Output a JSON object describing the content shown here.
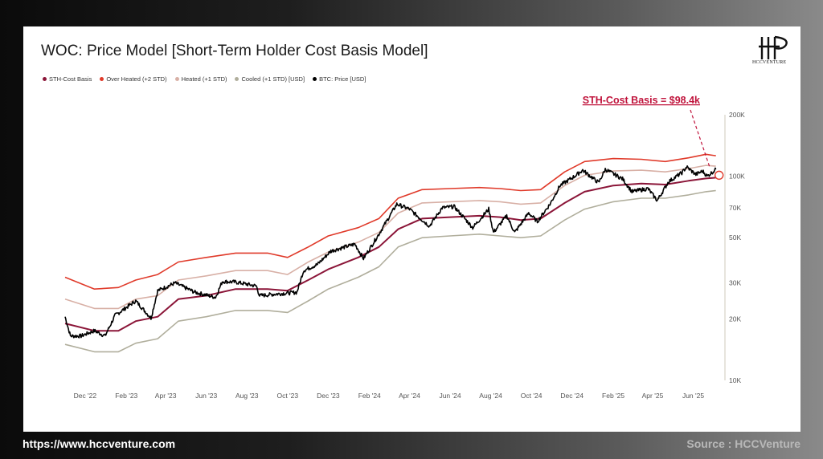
{
  "header": {
    "title": "WOC: Price Model [Short-Term Holder Cost Basis Model]"
  },
  "logo": {
    "text": "HCCVENTURE"
  },
  "footer": {
    "website": "https://www.hccventure.com",
    "source": "Source : HCCVenture"
  },
  "colors": {
    "sth": "#8b1538",
    "overheated": "#e03a2a",
    "heated": "#d8b0a6",
    "cooled": "#b0ae9c",
    "price": "#000000",
    "annotation": "#c0143c"
  },
  "chart_data": {
    "type": "line",
    "title": "WOC: Price Model [Short-Term Holder Cost Basis Model]",
    "annotation": "STH-Cost Basis = $98.4k",
    "y_scale": "log",
    "ylim": [
      10000,
      200000
    ],
    "y_ticks": [
      {
        "value": 200000,
        "label": "200K"
      },
      {
        "value": 100000,
        "label": "100K"
      },
      {
        "value": 70000,
        "label": "70K"
      },
      {
        "value": 50000,
        "label": "50K"
      },
      {
        "value": 30000,
        "label": "30K"
      },
      {
        "value": 20000,
        "label": "20K"
      },
      {
        "value": 10000,
        "label": "10K"
      }
    ],
    "x_range": [
      "2022-11-01",
      "2025-07-15"
    ],
    "x_ticks": [
      {
        "date": "2022-12-01",
        "label": "Dec '22"
      },
      {
        "date": "2023-02-01",
        "label": "Feb '23"
      },
      {
        "date": "2023-04-01",
        "label": "Apr '23"
      },
      {
        "date": "2023-06-01",
        "label": "Jun '23"
      },
      {
        "date": "2023-08-01",
        "label": "Aug '23"
      },
      {
        "date": "2023-10-01",
        "label": "Oct '23"
      },
      {
        "date": "2023-12-01",
        "label": "Dec '23"
      },
      {
        "date": "2024-02-01",
        "label": "Feb '24"
      },
      {
        "date": "2024-04-01",
        "label": "Apr '24"
      },
      {
        "date": "2024-06-01",
        "label": "Jun '24"
      },
      {
        "date": "2024-08-01",
        "label": "Aug '24"
      },
      {
        "date": "2024-10-01",
        "label": "Oct '24"
      },
      {
        "date": "2024-12-01",
        "label": "Dec '24"
      },
      {
        "date": "2025-02-01",
        "label": "Feb '25"
      },
      {
        "date": "2025-04-01",
        "label": "Apr '25"
      },
      {
        "date": "2025-06-01",
        "label": "Jun '25"
      }
    ],
    "series": [
      {
        "name": "STH-Cost Basis",
        "key": "sth",
        "points": [
          [
            "2022-11-01",
            19000
          ],
          [
            "2022-12-15",
            17500
          ],
          [
            "2023-01-20",
            17500
          ],
          [
            "2023-02-15",
            19500
          ],
          [
            "2023-03-20",
            20500
          ],
          [
            "2023-04-20",
            25000
          ],
          [
            "2023-06-01",
            26000
          ],
          [
            "2023-07-15",
            28000
          ],
          [
            "2023-09-01",
            28000
          ],
          [
            "2023-10-01",
            27500
          ],
          [
            "2023-11-01",
            31000
          ],
          [
            "2023-12-01",
            35000
          ],
          [
            "2024-01-15",
            40000
          ],
          [
            "2024-02-15",
            45000
          ],
          [
            "2024-03-15",
            55000
          ],
          [
            "2024-04-20",
            62000
          ],
          [
            "2024-06-01",
            63000
          ],
          [
            "2024-07-15",
            64000
          ],
          [
            "2024-08-15",
            63000
          ],
          [
            "2024-09-15",
            61000
          ],
          [
            "2024-10-15",
            62000
          ],
          [
            "2024-11-20",
            74000
          ],
          [
            "2024-12-20",
            84000
          ],
          [
            "2025-02-01",
            90000
          ],
          [
            "2025-03-15",
            92000
          ],
          [
            "2025-04-20",
            91000
          ],
          [
            "2025-05-25",
            95000
          ],
          [
            "2025-06-20",
            97500
          ],
          [
            "2025-07-05",
            98400
          ]
        ]
      },
      {
        "name": "Over Heated (+2 STD)",
        "key": "overheated",
        "points": [
          [
            "2022-11-01",
            32000
          ],
          [
            "2022-12-15",
            28000
          ],
          [
            "2023-01-20",
            28500
          ],
          [
            "2023-02-15",
            31000
          ],
          [
            "2023-03-20",
            33000
          ],
          [
            "2023-04-20",
            38000
          ],
          [
            "2023-06-01",
            40000
          ],
          [
            "2023-07-15",
            42000
          ],
          [
            "2023-09-01",
            42000
          ],
          [
            "2023-10-01",
            40000
          ],
          [
            "2023-11-01",
            45000
          ],
          [
            "2023-12-01",
            51000
          ],
          [
            "2024-01-15",
            56000
          ],
          [
            "2024-02-15",
            62000
          ],
          [
            "2024-03-15",
            78000
          ],
          [
            "2024-04-20",
            86000
          ],
          [
            "2024-06-01",
            87000
          ],
          [
            "2024-07-15",
            88000
          ],
          [
            "2024-08-15",
            87000
          ],
          [
            "2024-09-15",
            85000
          ],
          [
            "2024-10-15",
            86000
          ],
          [
            "2024-11-20",
            105000
          ],
          [
            "2024-12-20",
            118000
          ],
          [
            "2025-02-01",
            122000
          ],
          [
            "2025-03-15",
            121000
          ],
          [
            "2025-04-20",
            118000
          ],
          [
            "2025-05-25",
            123000
          ],
          [
            "2025-06-20",
            128000
          ],
          [
            "2025-07-05",
            126000
          ]
        ]
      },
      {
        "name": "Heated (+1 STD)",
        "key": "heated",
        "points": [
          [
            "2022-11-01",
            25000
          ],
          [
            "2022-12-15",
            22500
          ],
          [
            "2023-01-20",
            22500
          ],
          [
            "2023-02-15",
            25000
          ],
          [
            "2023-03-20",
            26000
          ],
          [
            "2023-04-20",
            31000
          ],
          [
            "2023-06-01",
            32500
          ],
          [
            "2023-07-15",
            34500
          ],
          [
            "2023-09-01",
            34500
          ],
          [
            "2023-10-01",
            33000
          ],
          [
            "2023-11-01",
            38000
          ],
          [
            "2023-12-01",
            42500
          ],
          [
            "2024-01-15",
            47500
          ],
          [
            "2024-02-15",
            53000
          ],
          [
            "2024-03-15",
            66000
          ],
          [
            "2024-04-20",
            74000
          ],
          [
            "2024-06-01",
            75000
          ],
          [
            "2024-07-15",
            76000
          ],
          [
            "2024-08-15",
            75000
          ],
          [
            "2024-09-15",
            73000
          ],
          [
            "2024-10-15",
            74000
          ],
          [
            "2024-11-20",
            90000
          ],
          [
            "2024-12-20",
            101000
          ],
          [
            "2025-02-01",
            106000
          ],
          [
            "2025-03-15",
            107000
          ],
          [
            "2025-04-20",
            105000
          ],
          [
            "2025-05-25",
            109000
          ],
          [
            "2025-06-20",
            113000
          ],
          [
            "2025-07-05",
            112000
          ]
        ]
      },
      {
        "name": "Cooled (+1 STD) [USD]",
        "key": "cooled",
        "points": [
          [
            "2022-11-01",
            15000
          ],
          [
            "2022-12-15",
            13800
          ],
          [
            "2023-01-20",
            13800
          ],
          [
            "2023-02-15",
            15200
          ],
          [
            "2023-03-20",
            16000
          ],
          [
            "2023-04-20",
            19500
          ],
          [
            "2023-06-01",
            20500
          ],
          [
            "2023-07-15",
            22000
          ],
          [
            "2023-09-01",
            22000
          ],
          [
            "2023-10-01",
            21500
          ],
          [
            "2023-11-01",
            24500
          ],
          [
            "2023-12-01",
            28000
          ],
          [
            "2024-01-15",
            32000
          ],
          [
            "2024-02-15",
            36000
          ],
          [
            "2024-03-15",
            45000
          ],
          [
            "2024-04-20",
            50000
          ],
          [
            "2024-06-01",
            51000
          ],
          [
            "2024-07-15",
            52000
          ],
          [
            "2024-08-15",
            51000
          ],
          [
            "2024-09-15",
            50000
          ],
          [
            "2024-10-15",
            51000
          ],
          [
            "2024-11-20",
            61000
          ],
          [
            "2024-12-20",
            69000
          ],
          [
            "2025-02-01",
            75000
          ],
          [
            "2025-03-15",
            78000
          ],
          [
            "2025-04-20",
            78000
          ],
          [
            "2025-05-25",
            81000
          ],
          [
            "2025-06-20",
            84000
          ],
          [
            "2025-07-05",
            85000
          ]
        ]
      },
      {
        "name": "BTC: Price [USD]",
        "key": "price",
        "points": [
          [
            "2022-11-01",
            20500
          ],
          [
            "2022-11-09",
            16500
          ],
          [
            "2022-11-25",
            16500
          ],
          [
            "2022-12-15",
            17500
          ],
          [
            "2022-12-31",
            16500
          ],
          [
            "2023-01-15",
            20800
          ],
          [
            "2023-02-15",
            24500
          ],
          [
            "2023-03-10",
            20200
          ],
          [
            "2023-03-20",
            27500
          ],
          [
            "2023-04-15",
            30000
          ],
          [
            "2023-05-15",
            27000
          ],
          [
            "2023-06-15",
            25500
          ],
          [
            "2023-06-25",
            30500
          ],
          [
            "2023-07-15",
            30300
          ],
          [
            "2023-08-15",
            29000
          ],
          [
            "2023-08-20",
            26000
          ],
          [
            "2023-09-15",
            26500
          ],
          [
            "2023-10-15",
            27000
          ],
          [
            "2023-10-25",
            34500
          ],
          [
            "2023-11-15",
            37000
          ],
          [
            "2023-12-05",
            43000
          ],
          [
            "2024-01-10",
            46500
          ],
          [
            "2024-01-23",
            39500
          ],
          [
            "2024-02-15",
            52000
          ],
          [
            "2024-03-13",
            73000
          ],
          [
            "2024-04-01",
            69000
          ],
          [
            "2024-04-15",
            63000
          ],
          [
            "2024-05-01",
            57000
          ],
          [
            "2024-05-20",
            70000
          ],
          [
            "2024-06-07",
            71000
          ],
          [
            "2024-06-25",
            61000
          ],
          [
            "2024-07-05",
            56000
          ],
          [
            "2024-07-29",
            69000
          ],
          [
            "2024-08-05",
            53000
          ],
          [
            "2024-08-25",
            64000
          ],
          [
            "2024-09-06",
            53000
          ],
          [
            "2024-09-27",
            66000
          ],
          [
            "2024-10-10",
            60000
          ],
          [
            "2024-10-29",
            73000
          ],
          [
            "2024-11-13",
            90000
          ],
          [
            "2024-12-05",
            100000
          ],
          [
            "2024-12-17",
            107000
          ],
          [
            "2025-01-10",
            93000
          ],
          [
            "2025-01-20",
            108000
          ],
          [
            "2025-02-15",
            97000
          ],
          [
            "2025-03-01",
            84000
          ],
          [
            "2025-03-25",
            87000
          ],
          [
            "2025-04-08",
            76000
          ],
          [
            "2025-04-25",
            94000
          ],
          [
            "2025-05-15",
            104000
          ],
          [
            "2025-05-22",
            111000
          ],
          [
            "2025-06-05",
            102000
          ],
          [
            "2025-06-15",
            106000
          ],
          [
            "2025-06-22",
            100000
          ],
          [
            "2025-07-05",
            108000
          ]
        ]
      }
    ]
  }
}
